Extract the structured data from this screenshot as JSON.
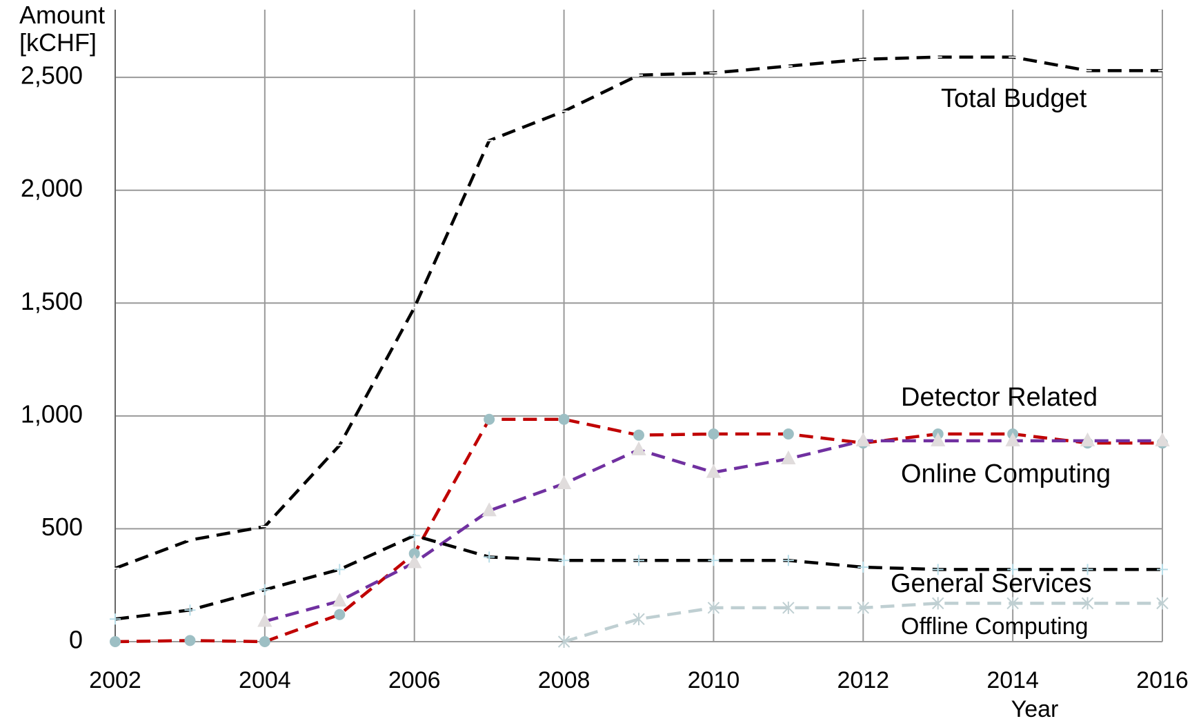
{
  "chart_data": {
    "type": "line",
    "y_label": "Amount [kCHF]",
    "x_label": "Year",
    "x": [
      2002,
      2003,
      2004,
      2005,
      2006,
      2007,
      2008,
      2009,
      2010,
      2011,
      2012,
      2013,
      2014,
      2015,
      2016
    ],
    "series": [
      {
        "name": "Total Budget",
        "color": "#000000",
        "marker": "dash",
        "values": [
          325,
          450,
          510,
          870,
          1480,
          2220,
          2350,
          2510,
          2520,
          2550,
          2580,
          2590,
          2590,
          2530,
          2530
        ]
      },
      {
        "name": "Detector Related",
        "color": "#c00000",
        "marker": "diamond",
        "values": [
          0,
          5,
          0,
          120,
          390,
          985,
          985,
          915,
          920,
          920,
          880,
          920,
          920,
          880,
          880
        ]
      },
      {
        "name": "Online Computing",
        "color": "#7030a0",
        "marker": "triangle",
        "values": [
          null,
          null,
          90,
          180,
          350,
          580,
          700,
          850,
          750,
          810,
          890,
          890,
          890,
          890,
          890
        ]
      },
      {
        "name": "General Services",
        "color": "#000000",
        "marker": "plus",
        "values": [
          100,
          140,
          230,
          320,
          470,
          375,
          360,
          360,
          360,
          360,
          330,
          320,
          320,
          320,
          320
        ]
      },
      {
        "name": "Offline Computing",
        "color": "#bfcfd2",
        "marker": "cross",
        "values": [
          null,
          null,
          null,
          null,
          null,
          null,
          0,
          100,
          150,
          150,
          150,
          170,
          170,
          170,
          170
        ]
      }
    ],
    "xlim": [
      2002,
      2016
    ],
    "xticks": [
      2002,
      2004,
      2006,
      2008,
      2010,
      2012,
      2014,
      2016
    ],
    "ylim": [
      0,
      2800
    ],
    "yticks": [
      0,
      500,
      {
        "value": 1000,
        "label": "1,000"
      },
      {
        "value": 1500,
        "label": "1,500"
      },
      {
        "value": 2000,
        "label": "2,000"
      },
      {
        "value": 2500,
        "label": "2,500"
      }
    ],
    "grid": true
  }
}
